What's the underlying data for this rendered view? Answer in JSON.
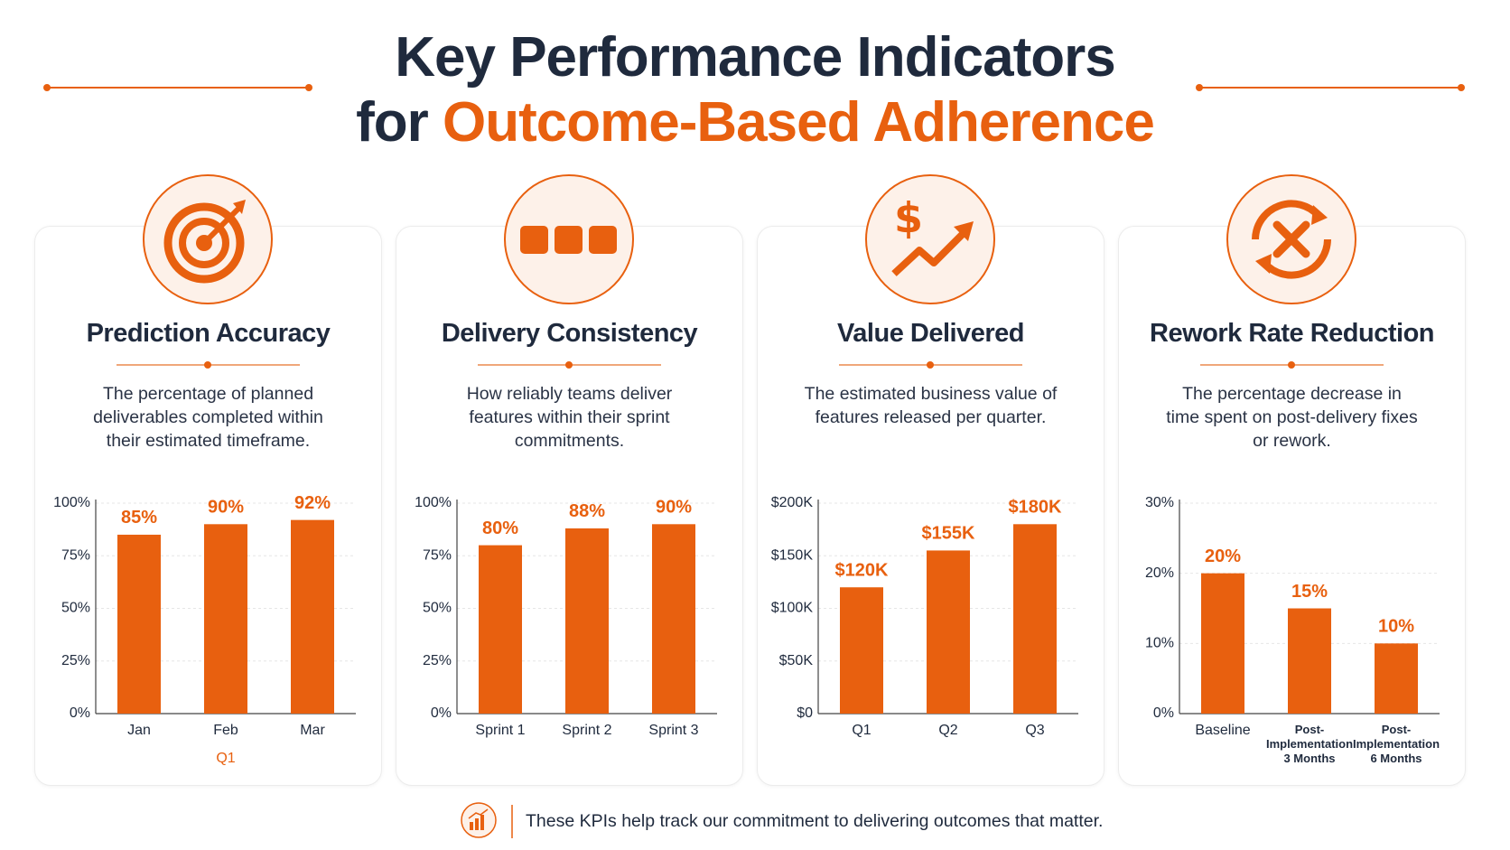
{
  "header": {
    "title": "Key Performance Indicators",
    "subtitle_prefix": "for",
    "subtitle_highlight": "Outcome-Based Adherence"
  },
  "chart_data": [
    {
      "type": "bar",
      "title": "Prediction Accuracy",
      "description": "The percentage of planned deliverables completed within their estimated timeframe.",
      "categories": [
        "Jan",
        "Feb",
        "Mar"
      ],
      "x_group_label": "Q1",
      "values": [
        85,
        90,
        92
      ],
      "value_labels": [
        "85%",
        "90%",
        "92%"
      ],
      "color": "#e8600f",
      "ylim": [
        0,
        100
      ],
      "yticks": [
        {
          "value": 0,
          "label": "0%"
        },
        {
          "value": 25,
          "label": "25%"
        },
        {
          "value": 50,
          "label": "50%"
        },
        {
          "value": 75,
          "label": "75%"
        },
        {
          "value": 100,
          "label": "100%"
        }
      ],
      "grid": true
    },
    {
      "type": "bar",
      "title": "Delivery Consistency",
      "description": "How reliably teams deliver features within their sprint commitments.",
      "categories": [
        "Sprint 1",
        "Sprint 2",
        "Sprint 3"
      ],
      "values": [
        80,
        88,
        90
      ],
      "value_labels": [
        "80%",
        "88%",
        "90%"
      ],
      "color": "#e8600f",
      "ylim": [
        0,
        100
      ],
      "yticks": [
        {
          "value": 0,
          "label": "0%"
        },
        {
          "value": 25,
          "label": "25%"
        },
        {
          "value": 50,
          "label": "50%"
        },
        {
          "value": 75,
          "label": "75%"
        },
        {
          "value": 100,
          "label": "100%"
        }
      ],
      "grid": true
    },
    {
      "type": "bar",
      "title": "Value Delivered",
      "description": "The estimated business value of features released per quarter.",
      "categories": [
        "Q1",
        "Q2",
        "Q3"
      ],
      "values": [
        120000,
        155000,
        180000
      ],
      "value_labels": [
        "$120K",
        "$155K",
        "$180K"
      ],
      "color": "#e8600f",
      "ylim": [
        0,
        200000
      ],
      "yticks": [
        {
          "value": 0,
          "label": "$0"
        },
        {
          "value": 50000,
          "label": "$50K"
        },
        {
          "value": 100000,
          "label": "$100K"
        },
        {
          "value": 150000,
          "label": "$150K"
        },
        {
          "value": 200000,
          "label": "$200K"
        }
      ],
      "grid": true
    },
    {
      "type": "bar",
      "title": "Rework Rate Reduction",
      "description": "The percentage decrease in time spent on post-delivery fixes or rework.",
      "categories": [
        "Baseline",
        "Post-Implementation 3 Months",
        "Post-Implementation 6 Months"
      ],
      "values": [
        20,
        15,
        10
      ],
      "value_labels": [
        "20%",
        "15%",
        "10%"
      ],
      "color": "#e8600f",
      "ylim": [
        0,
        30
      ],
      "yticks": [
        {
          "value": 0,
          "label": "0%"
        },
        {
          "value": 10,
          "label": "10%"
        },
        {
          "value": 20,
          "label": "20%"
        },
        {
          "value": 30,
          "label": "30%"
        }
      ],
      "grid": true
    }
  ],
  "footer": {
    "text": "These KPIs help track our commitment to delivering outcomes that matter."
  }
}
